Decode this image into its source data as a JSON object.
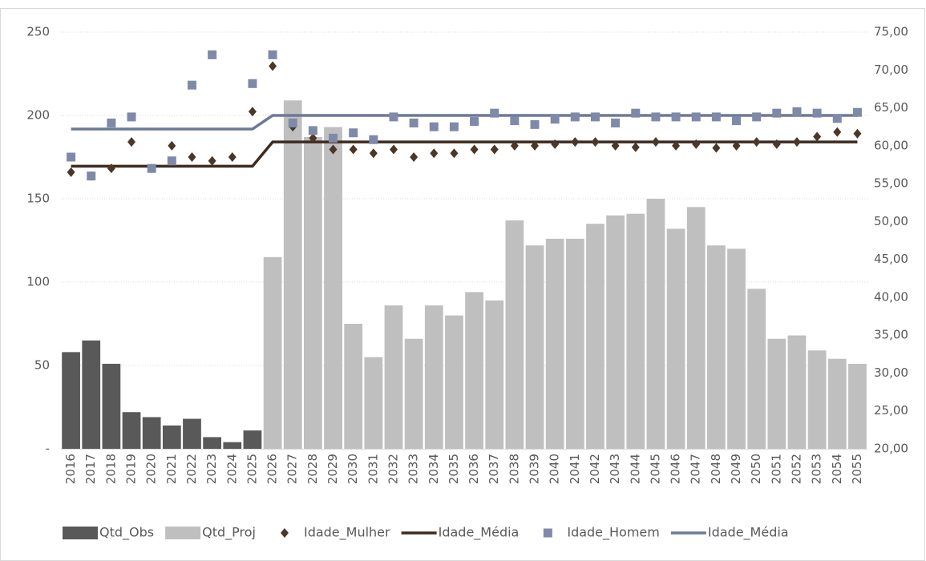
{
  "chart_data": {
    "type": "combo",
    "categories": [
      "2016",
      "2017",
      "2018",
      "2019",
      "2020",
      "2021",
      "2022",
      "2023",
      "2024",
      "2025",
      "2026",
      "2027",
      "2028",
      "2029",
      "2030",
      "2031",
      "2032",
      "2033",
      "2034",
      "2035",
      "2036",
      "2037",
      "2038",
      "2039",
      "2040",
      "2041",
      "2042",
      "2043",
      "2044",
      "2045",
      "2046",
      "2047",
      "2048",
      "2049",
      "2050",
      "2051",
      "2052",
      "2053",
      "2054",
      "2055"
    ],
    "ylim": [
      0,
      250
    ],
    "yticks": [
      {
        "value": 0,
        "label": "-"
      },
      50,
      100,
      150,
      200,
      250
    ],
    "y2lim": [
      20,
      75
    ],
    "y2ticks": [
      {
        "value": 20,
        "label": "20,00"
      },
      {
        "value": 25,
        "label": "25,00"
      },
      {
        "value": 30,
        "label": "30,00"
      },
      {
        "value": 35,
        "label": "35,00"
      },
      {
        "value": 40,
        "label": "40,00"
      },
      {
        "value": 45,
        "label": "45,00"
      },
      {
        "value": 50,
        "label": "50,00"
      },
      {
        "value": 55,
        "label": "55,00"
      },
      {
        "value": 60,
        "label": "60,00"
      },
      {
        "value": 65,
        "label": "65,00"
      },
      {
        "value": 70,
        "label": "70,00"
      },
      {
        "value": 75,
        "label": "75,00"
      }
    ],
    "grid": true,
    "legend": "bottom",
    "series": [
      {
        "name": "Qtd_Obs",
        "kind": "bar",
        "color": "#595959",
        "values": [
          58,
          65,
          51,
          22,
          19,
          14,
          18,
          7,
          4,
          11,
          null,
          null,
          null,
          null,
          null,
          null,
          null,
          null,
          null,
          null,
          null,
          null,
          null,
          null,
          null,
          null,
          null,
          null,
          null,
          null,
          null,
          null,
          null,
          null,
          null,
          null,
          null,
          null,
          null,
          null
        ]
      },
      {
        "name": "Qtd_Proj",
        "kind": "bar",
        "color": "#bfbfbf",
        "values": [
          null,
          null,
          null,
          null,
          null,
          null,
          null,
          null,
          null,
          null,
          115,
          209,
          187,
          193,
          75,
          55,
          86,
          66,
          86,
          80,
          94,
          89,
          137,
          122,
          126,
          126,
          135,
          140,
          141,
          150,
          132,
          145,
          122,
          120,
          96,
          66,
          68,
          59,
          54,
          51
        ]
      },
      {
        "name": "Idade_Mulher",
        "kind": "scatter",
        "marker": "diamond",
        "axis": "y2",
        "color": "#4a3728",
        "values": [
          56.5,
          56,
          57,
          60.5,
          57,
          60,
          58.5,
          58,
          58.5,
          64.5,
          70.5,
          62.5,
          61,
          59.5,
          59.5,
          59,
          59.5,
          58.5,
          59,
          59,
          59.5,
          59.5,
          60,
          60,
          60.2,
          60.5,
          60.5,
          60,
          59.8,
          60.5,
          60,
          60.2,
          59.7,
          60,
          60.5,
          60.2,
          60.5,
          61.2,
          61.8,
          61.6
        ]
      },
      {
        "name": "Idade_Média",
        "kind": "line",
        "axis": "y2",
        "color": "#3e2b1f",
        "values": [
          57.3,
          57.3,
          57.3,
          57.3,
          57.3,
          57.3,
          57.3,
          57.3,
          57.3,
          57.3,
          60.5,
          60.5,
          60.5,
          60.5,
          60.5,
          60.5,
          60.5,
          60.5,
          60.5,
          60.5,
          60.5,
          60.5,
          60.5,
          60.5,
          60.5,
          60.5,
          60.5,
          60.5,
          60.5,
          60.5,
          60.5,
          60.5,
          60.5,
          60.5,
          60.5,
          60.5,
          60.5,
          60.5,
          60.5,
          60.5
        ]
      },
      {
        "name": "Idade_Homem",
        "kind": "scatter",
        "marker": "square",
        "axis": "y2",
        "color": "#7f8aa8",
        "values": [
          58.5,
          56,
          63,
          63.8,
          57,
          58,
          68,
          72,
          null,
          68.2,
          72,
          63,
          62,
          61,
          61.7,
          60.8,
          63.8,
          63,
          62.5,
          62.5,
          63.2,
          64.3,
          63.3,
          62.8,
          63.5,
          63.8,
          63.8,
          63,
          64.3,
          63.8,
          63.8,
          63.8,
          63.8,
          63.3,
          63.8,
          64.3,
          64.5,
          64.3,
          63.6,
          64.4
        ]
      },
      {
        "name": "Idade_Média",
        "kind": "line",
        "axis": "y2",
        "color": "#6d7a96",
        "values": [
          62.2,
          62.2,
          62.2,
          62.2,
          62.2,
          62.2,
          62.2,
          62.2,
          62.2,
          62.2,
          64,
          64,
          64,
          64,
          64,
          64,
          64,
          64,
          64,
          64,
          64,
          64,
          64,
          64,
          64,
          64,
          64,
          64,
          64,
          64,
          64,
          64,
          64,
          64,
          64,
          64,
          64,
          64,
          64,
          64
        ]
      }
    ]
  }
}
